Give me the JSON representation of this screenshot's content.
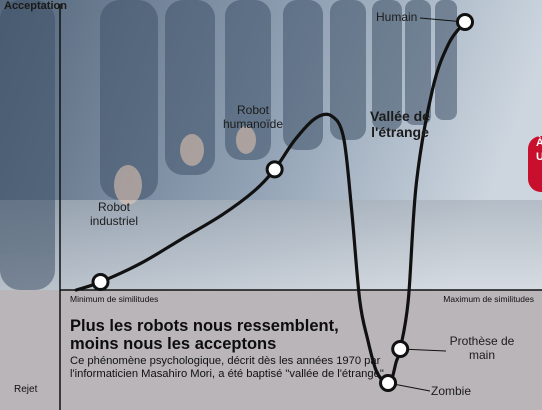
{
  "chart_data": {
    "type": "line",
    "title": "",
    "ylabel": "Acceptation",
    "bottom_ylabel": "Rejet",
    "x_min_label": "Minimum de similitudes",
    "x_max_label": "Maximum de similitudes",
    "xlim": [
      0,
      100
    ],
    "ylim": [
      -100,
      100
    ],
    "points": [
      {
        "x": 10,
        "y": 3,
        "label": "Robot industriel"
      },
      {
        "x": 53,
        "y": 45,
        "label": "Robot humanoïde"
      },
      {
        "x": 81,
        "y": -93,
        "label": "Zombie"
      },
      {
        "x": 84,
        "y": -59,
        "label": "Prothèse de main"
      },
      {
        "x": 100,
        "y": 100,
        "label": "Humain"
      }
    ],
    "curve": [
      [
        4,
        0
      ],
      [
        10,
        3
      ],
      [
        20,
        10
      ],
      [
        30,
        19
      ],
      [
        40,
        28
      ],
      [
        48,
        37
      ],
      [
        53,
        45
      ],
      [
        58,
        56
      ],
      [
        63,
        64
      ],
      [
        67,
        65
      ],
      [
        70,
        57
      ],
      [
        72,
        30
      ],
      [
        74,
        -10
      ],
      [
        76,
        -50
      ],
      [
        78,
        -80
      ],
      [
        80,
        -92
      ],
      [
        81,
        -93
      ],
      [
        82,
        -88
      ],
      [
        83,
        -72
      ],
      [
        84,
        -59
      ],
      [
        86,
        -10
      ],
      [
        88,
        40
      ],
      [
        92,
        75
      ],
      [
        96,
        92
      ],
      [
        100,
        100
      ]
    ],
    "annotation": "Vallée de l'étrange"
  },
  "headline": {
    "line1": "Plus les robots nous ressemblent,",
    "line2": "moins nous les acceptons"
  },
  "body": "Ce phénomène psychologique, décrit dès les années 1970 par l'informaticien Masahiro Mori, a été baptisé \"vallée de l'étrange\".",
  "badge": {
    "line1": "À",
    "line2": "U"
  },
  "colors": {
    "curve": "#111111",
    "marker_fill": "#ffffff",
    "lower_band": "#b9b5b9",
    "accent": "#c8102e"
  }
}
